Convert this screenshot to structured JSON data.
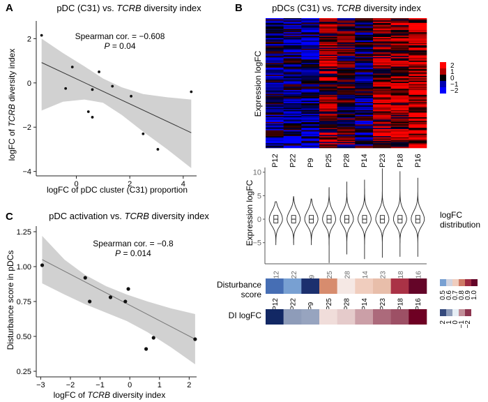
{
  "panels": {
    "a": "A",
    "b": "B",
    "c": "C"
  },
  "chart_data": [
    {
      "id": "A",
      "type": "scatter",
      "title_prefix": "pDC (C31) vs. ",
      "title_italic": "TCRB",
      "title_suffix": " diversity index",
      "xlabel": "logFC of pDC cluster (C31) proportion",
      "ylabel_prefix": "logFC of ",
      "ylabel_italic": "TCRB",
      "ylabel_suffix": " diversity index",
      "xlim": [
        -1.5,
        4.5
      ],
      "ylim": [
        -4.2,
        2.8
      ],
      "xticks": [
        0,
        2,
        4
      ],
      "yticks": [
        -4,
        -2,
        0,
        2
      ],
      "points": [
        [
          -1.3,
          2.15
        ],
        [
          -0.15,
          0.72
        ],
        [
          -0.4,
          -0.25
        ],
        [
          0.45,
          -1.3
        ],
        [
          0.6,
          -1.55
        ],
        [
          0.6,
          -0.3
        ],
        [
          0.85,
          0.5
        ],
        [
          1.35,
          -0.15
        ],
        [
          2.05,
          -0.6
        ],
        [
          2.5,
          -2.3
        ],
        [
          3.05,
          -3.0
        ],
        [
          4.3,
          -0.4
        ]
      ],
      "fit": {
        "x": [
          -1.3,
          4.3
        ],
        "y": [
          0.92,
          -2.25
        ]
      },
      "band_upper": [
        [
          -1.3,
          2.0
        ],
        [
          -0.5,
          1.35
        ],
        [
          0.3,
          0.75
        ],
        [
          1.0,
          0.2
        ],
        [
          1.7,
          -0.2
        ],
        [
          2.5,
          -0.5
        ],
        [
          3.4,
          -0.65
        ],
        [
          4.3,
          -0.75
        ]
      ],
      "band_lower": [
        [
          4.3,
          -3.85
        ],
        [
          3.4,
          -3.0
        ],
        [
          2.5,
          -2.2
        ],
        [
          1.7,
          -1.45
        ],
        [
          1.0,
          -0.9
        ],
        [
          0.3,
          -0.75
        ],
        [
          -0.5,
          -0.85
        ],
        [
          -1.3,
          -1.25
        ]
      ],
      "stat_line1": "Spearman cor. = −0.608",
      "stat_p_italic": "P",
      "stat_p_value": " = 0.04"
    },
    {
      "id": "C",
      "type": "scatter",
      "title_prefix": "pDC activation vs. ",
      "title_italic": "TCRB",
      "title_suffix": " diversity index",
      "xlabel_prefix": "logFC of ",
      "xlabel_italic": "TCRB",
      "xlabel_suffix": " diversity index",
      "ylabel": "Disturbance score in pDCs",
      "xlim": [
        -3.15,
        2.25
      ],
      "ylim": [
        0.21,
        1.29
      ],
      "xticks": [
        -3,
        -2,
        -1,
        0,
        1,
        2
      ],
      "yticks": [
        0.25,
        0.5,
        0.75,
        1.0,
        1.25
      ],
      "ytick_labels": [
        "0.25",
        "0.50",
        "0.75",
        "1.00",
        "1.25"
      ],
      "points": [
        [
          -2.95,
          1.01
        ],
        [
          -1.5,
          0.92
        ],
        [
          -1.35,
          0.75
        ],
        [
          -0.65,
          0.78
        ],
        [
          -0.15,
          0.75
        ],
        [
          -0.05,
          0.84
        ],
        [
          0.55,
          0.41
        ],
        [
          0.8,
          0.49
        ],
        [
          2.2,
          0.48
        ]
      ],
      "fit": {
        "x": [
          -2.95,
          2.2
        ],
        "y": [
          1.05,
          0.48
        ]
      },
      "band_upper": [
        [
          -2.95,
          1.22
        ],
        [
          -2.2,
          1.05
        ],
        [
          -1.5,
          0.94
        ],
        [
          -0.8,
          0.86
        ],
        [
          -0.1,
          0.8
        ],
        [
          0.6,
          0.75
        ],
        [
          1.4,
          0.7
        ],
        [
          2.2,
          0.66
        ]
      ],
      "band_lower": [
        [
          2.2,
          0.3
        ],
        [
          1.4,
          0.42
        ],
        [
          0.6,
          0.53
        ],
        [
          -0.1,
          0.61
        ],
        [
          -0.8,
          0.67
        ],
        [
          -1.5,
          0.73
        ],
        [
          -2.2,
          0.8
        ],
        [
          -2.95,
          0.88
        ]
      ],
      "stat_line1": "Spearman cor. = −0.8",
      "stat_p_italic": "P",
      "stat_p_value": " = 0.014"
    },
    {
      "id": "B-heatmap",
      "type": "heatmap",
      "title_prefix": "pDCs (C31) vs. ",
      "title_italic": "TCRB",
      "title_suffix": " diversity index",
      "ylabel": "Expression logFC",
      "columns": [
        "P12",
        "P22",
        "P9",
        "P25",
        "P28",
        "P14",
        "P23",
        "P18",
        "P16"
      ],
      "column_bias": [
        -0.5,
        -0.6,
        -0.7,
        0.5,
        0.1,
        -0.4,
        0.6,
        0.7,
        0.9
      ],
      "n_rows": 110,
      "color_scale": {
        "min": -2,
        "max": 2,
        "low": "#0000ff",
        "mid": "#000000",
        "high": "#ff0000"
      },
      "legend_ticks": [
        "2",
        "1",
        "0",
        "−1",
        "−2"
      ]
    },
    {
      "id": "B-violin",
      "type": "violin",
      "ylabel": "Expression logFC",
      "categories": [
        "P12",
        "P22",
        "P9",
        "P25",
        "P28",
        "P14",
        "P23",
        "P18",
        "P16"
      ],
      "ylim": [
        -9.5,
        11
      ],
      "yticks": [
        -5,
        0,
        5,
        10
      ],
      "extent_low": [
        -5.5,
        -5.5,
        -5.5,
        -9.3,
        -7.5,
        -8.5,
        -8.2,
        -8.0,
        -8.0
      ],
      "extent_high": [
        3.7,
        4.8,
        4.3,
        6.8,
        8.0,
        8.4,
        10.8,
        10.2,
        8.8
      ],
      "legend_label": "logFC\ndistribution"
    },
    {
      "id": "B-disturbance",
      "type": "heatmap",
      "label_line1": "Disturbance",
      "label_line2": "score",
      "categories": [
        "P12",
        "P22",
        "P9",
        "P25",
        "P28",
        "P14",
        "P23",
        "P18",
        "P16"
      ],
      "values": [
        0.46,
        0.5,
        0.32,
        0.78,
        0.64,
        0.7,
        0.74,
        0.88,
        1.0
      ],
      "legend_ticks": [
        "0.5",
        "0.6",
        "0.7",
        "0.8",
        "0.9",
        "1.0"
      ]
    },
    {
      "id": "B-dilogfc",
      "type": "heatmap",
      "label": "DI logFC",
      "categories": [
        "P12",
        "P22",
        "P9",
        "P25",
        "P28",
        "P14",
        "P23",
        "P18",
        "P16"
      ],
      "values": [
        2.4,
        1.0,
        0.9,
        -0.1,
        -0.3,
        -0.8,
        -1.4,
        -1.7,
        -2.6
      ],
      "legend_ticks": [
        "2",
        "1",
        "0",
        "−1",
        "−2"
      ]
    }
  ]
}
